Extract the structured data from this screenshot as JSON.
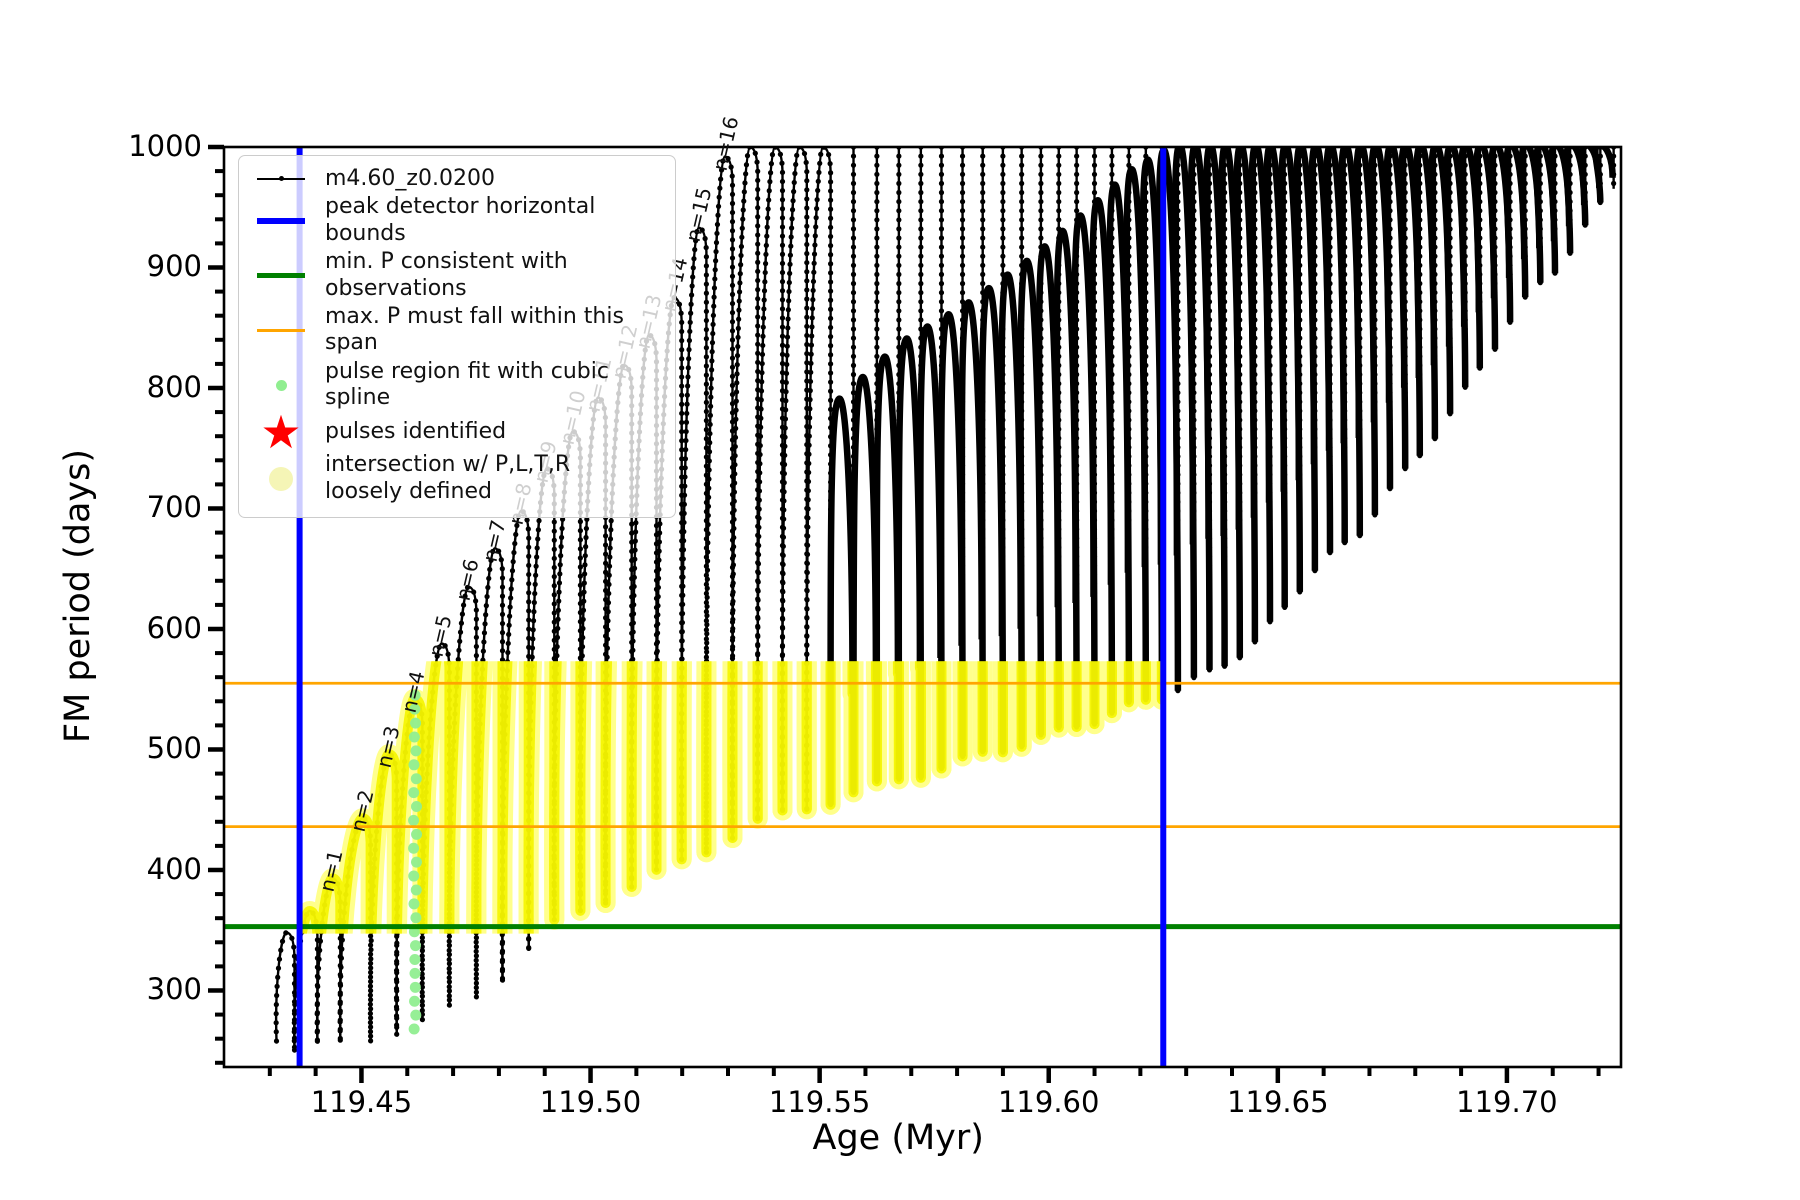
{
  "axes": {
    "xlabel": "Age (Myr)",
    "ylabel": "FM period (days)",
    "xlim": [
      119.42,
      119.7249
    ],
    "ylim": [
      236.5,
      1000
    ],
    "xticks": [
      {
        "v": 119.45,
        "label": "119.45"
      },
      {
        "v": 119.5,
        "label": "119.50"
      },
      {
        "v": 119.55,
        "label": "119.55"
      },
      {
        "v": 119.6,
        "label": "119.60"
      },
      {
        "v": 119.65,
        "label": "119.65"
      },
      {
        "v": 119.7,
        "label": "119.70"
      }
    ],
    "x_minor_step": 0.01,
    "yticks": [
      {
        "v": 300,
        "label": "300"
      },
      {
        "v": 400,
        "label": "400"
      },
      {
        "v": 500,
        "label": "500"
      },
      {
        "v": 600,
        "label": "600"
      },
      {
        "v": 700,
        "label": "700"
      },
      {
        "v": 800,
        "label": "800"
      },
      {
        "v": 900,
        "label": "900"
      },
      {
        "v": 1000,
        "label": "1000"
      }
    ],
    "y_minor_step": 20
  },
  "legend": {
    "entries": [
      {
        "marker": "line-dot",
        "color": "#000000",
        "label": "m4.60_z0.0200"
      },
      {
        "marker": "line-thick",
        "color": "#0000ff",
        "label": "peak detector horizontal bounds"
      },
      {
        "marker": "line-med",
        "color": "#008000",
        "label": "min. P consistent with observations"
      },
      {
        "marker": "line-thin",
        "color": "#ffa500",
        "label": "max. P must fall within this span"
      },
      {
        "marker": "dot-small",
        "color": "#90ee90",
        "label": "pulse region fit with cubic spline"
      },
      {
        "marker": "star",
        "color": "#ff0000",
        "label": "pulses identified"
      },
      {
        "marker": "dot-large",
        "color": "#f5f5b6",
        "label": "intersection w/ P,L,T,R\nloosely defined"
      }
    ]
  },
  "chart_data": {
    "type": "line",
    "series_name": "m4.60_z0.0200",
    "title": "",
    "xlabel": "Age (Myr)",
    "ylabel": "FM period (days)",
    "xlim": [
      119.42,
      119.7249
    ],
    "ylim": [
      236.5,
      1000
    ],
    "grid": false,
    "legend_position": "upper left",
    "vlines": [
      {
        "x": 119.4365,
        "color": "#0000ff",
        "width": 6,
        "name": "peak detector left bound"
      },
      {
        "x": 119.625,
        "color": "#0000ff",
        "width": 6,
        "name": "peak detector right bound"
      }
    ],
    "hlines": [
      {
        "y": 353,
        "color": "#008000",
        "width": 5,
        "name": "min. P consistent with observations"
      },
      {
        "y": 436,
        "color": "#ffa500",
        "width": 2.8,
        "name": "max. P span lower"
      },
      {
        "y": 555,
        "color": "#ffa500",
        "width": 2.8,
        "name": "max. P span upper"
      }
    ],
    "highlight_band": {
      "xmin": 119.4365,
      "xmax": 119.625,
      "ymin": 353,
      "ymax": 560,
      "color": "#ffff00"
    },
    "pulses": [
      [
        119.4343,
        348
      ],
      [
        119.4393,
        366
      ],
      [
        119.4443,
        393
      ],
      [
        119.4509,
        443
      ],
      [
        119.4566,
        496
      ],
      [
        119.4622,
        542
      ],
      [
        119.4681,
        588
      ],
      [
        119.474,
        635
      ],
      [
        119.4797,
        667
      ],
      [
        119.4854,
        698
      ],
      [
        119.491,
        733
      ],
      [
        119.4967,
        764
      ],
      [
        119.5022,
        792
      ],
      [
        119.5079,
        819
      ],
      [
        119.5133,
        844
      ],
      [
        119.5188,
        875
      ],
      [
        119.5242,
        933
      ],
      [
        119.5299,
        992
      ],
      [
        119.5354,
        1005
      ],
      [
        119.5408,
        1005
      ],
      [
        119.5461,
        1005
      ],
      [
        119.5513,
        1005
      ],
      [
        119.5563,
        1005
      ],
      [
        119.5614,
        1005
      ],
      [
        119.5662,
        1005
      ],
      [
        119.571,
        1005
      ],
      [
        119.5755,
        1005
      ],
      [
        119.5801,
        1005
      ],
      [
        119.5845,
        1005
      ],
      [
        119.5889,
        1005
      ],
      [
        119.593,
        1005
      ],
      [
        119.5972,
        1005
      ],
      [
        119.6011,
        1005
      ],
      [
        119.605,
        1005
      ],
      [
        119.6089,
        1005
      ],
      [
        119.6127,
        1005
      ],
      [
        119.6164,
        1005
      ],
      [
        119.6201,
        1005
      ],
      [
        119.6236,
        1005
      ],
      [
        119.6271,
        1005
      ],
      [
        119.6306,
        1005
      ],
      [
        119.634,
        1005
      ],
      [
        119.6373,
        1005
      ],
      [
        119.6406,
        1005
      ],
      [
        119.6439,
        1005
      ],
      [
        119.6472,
        1005
      ],
      [
        119.6504,
        1005
      ],
      [
        119.6537,
        1005
      ],
      [
        119.657,
        1005
      ],
      [
        119.6603,
        1005
      ],
      [
        119.6635,
        1005
      ],
      [
        119.6668,
        1005
      ],
      [
        119.6701,
        1005
      ],
      [
        119.6734,
        1005
      ],
      [
        119.6767,
        1005
      ],
      [
        119.6799,
        1005
      ],
      [
        119.6832,
        1005
      ],
      [
        119.6865,
        1005
      ],
      [
        119.6898,
        1005
      ],
      [
        119.693,
        1005
      ],
      [
        119.6963,
        1005
      ],
      [
        119.6996,
        1005
      ],
      [
        119.7029,
        1005
      ],
      [
        119.7062,
        1005
      ],
      [
        119.7094,
        1005
      ],
      [
        119.7127,
        1005
      ],
      [
        119.716,
        1005
      ],
      [
        119.7193,
        1005
      ],
      [
        119.7222,
        1005
      ]
    ],
    "trough_envelope": [
      [
        119.428,
        245
      ],
      [
        119.4622,
        268
      ],
      [
        119.48,
        305
      ],
      [
        119.494,
        358
      ],
      [
        119.5157,
        397
      ],
      [
        119.5375,
        440
      ],
      [
        119.5593,
        465
      ],
      [
        119.5811,
        490
      ],
      [
        119.603,
        515
      ],
      [
        119.6249,
        545
      ],
      [
        119.634,
        560
      ],
      [
        119.646,
        590
      ],
      [
        119.657,
        645
      ],
      [
        119.6679,
        680
      ],
      [
        119.6749,
        715
      ],
      [
        119.6886,
        782
      ],
      [
        119.7022,
        864
      ],
      [
        119.7116,
        902
      ],
      [
        119.7249,
        975
      ]
    ],
    "mound_envelope": [
      [
        119.552,
        775
      ],
      [
        119.5554,
        788
      ],
      [
        119.5696,
        838
      ],
      [
        119.5845,
        871
      ],
      [
        119.5985,
        909
      ],
      [
        119.6116,
        952
      ],
      [
        119.6199,
        981
      ],
      [
        119.629,
        1002
      ],
      [
        119.7249,
        1010
      ]
    ],
    "mound_start_age": 119.552,
    "spline_dots": {
      "age": 119.4617,
      "top": 545,
      "bottom": 268,
      "count": 25,
      "color": "#90ee90"
    },
    "n_labels": [
      {
        "text": "n=1",
        "age": 119.4443,
        "days": 393
      },
      {
        "text": "n=2",
        "age": 119.4509,
        "days": 443
      },
      {
        "text": "n=3",
        "age": 119.4566,
        "days": 496
      },
      {
        "text": "n=4",
        "age": 119.4622,
        "days": 542
      },
      {
        "text": "n=5",
        "age": 119.4681,
        "days": 588
      },
      {
        "text": "n=6",
        "age": 119.474,
        "days": 635
      },
      {
        "text": "n=7",
        "age": 119.4797,
        "days": 667
      },
      {
        "text": "n=8",
        "age": 119.4854,
        "days": 698
      },
      {
        "text": "n=9",
        "age": 119.491,
        "days": 733
      },
      {
        "text": "n=10",
        "age": 119.4967,
        "days": 764
      },
      {
        "text": "n=11",
        "age": 119.5022,
        "days": 792
      },
      {
        "text": "n=12",
        "age": 119.5079,
        "days": 819
      },
      {
        "text": "n=13",
        "age": 119.5133,
        "days": 844
      },
      {
        "text": "n=14",
        "age": 119.5188,
        "days": 875
      },
      {
        "text": "n=15",
        "age": 119.5242,
        "days": 933
      },
      {
        "text": "n=16",
        "age": 119.5299,
        "days": 992
      }
    ],
    "colors": {
      "series": "#000000",
      "bounds": "#0000ff",
      "min_p": "#008000",
      "max_p_span": "#ffa500",
      "spline": "#90ee90",
      "pulses_identified": "#ff0000",
      "intersection": "#ffff00"
    }
  }
}
